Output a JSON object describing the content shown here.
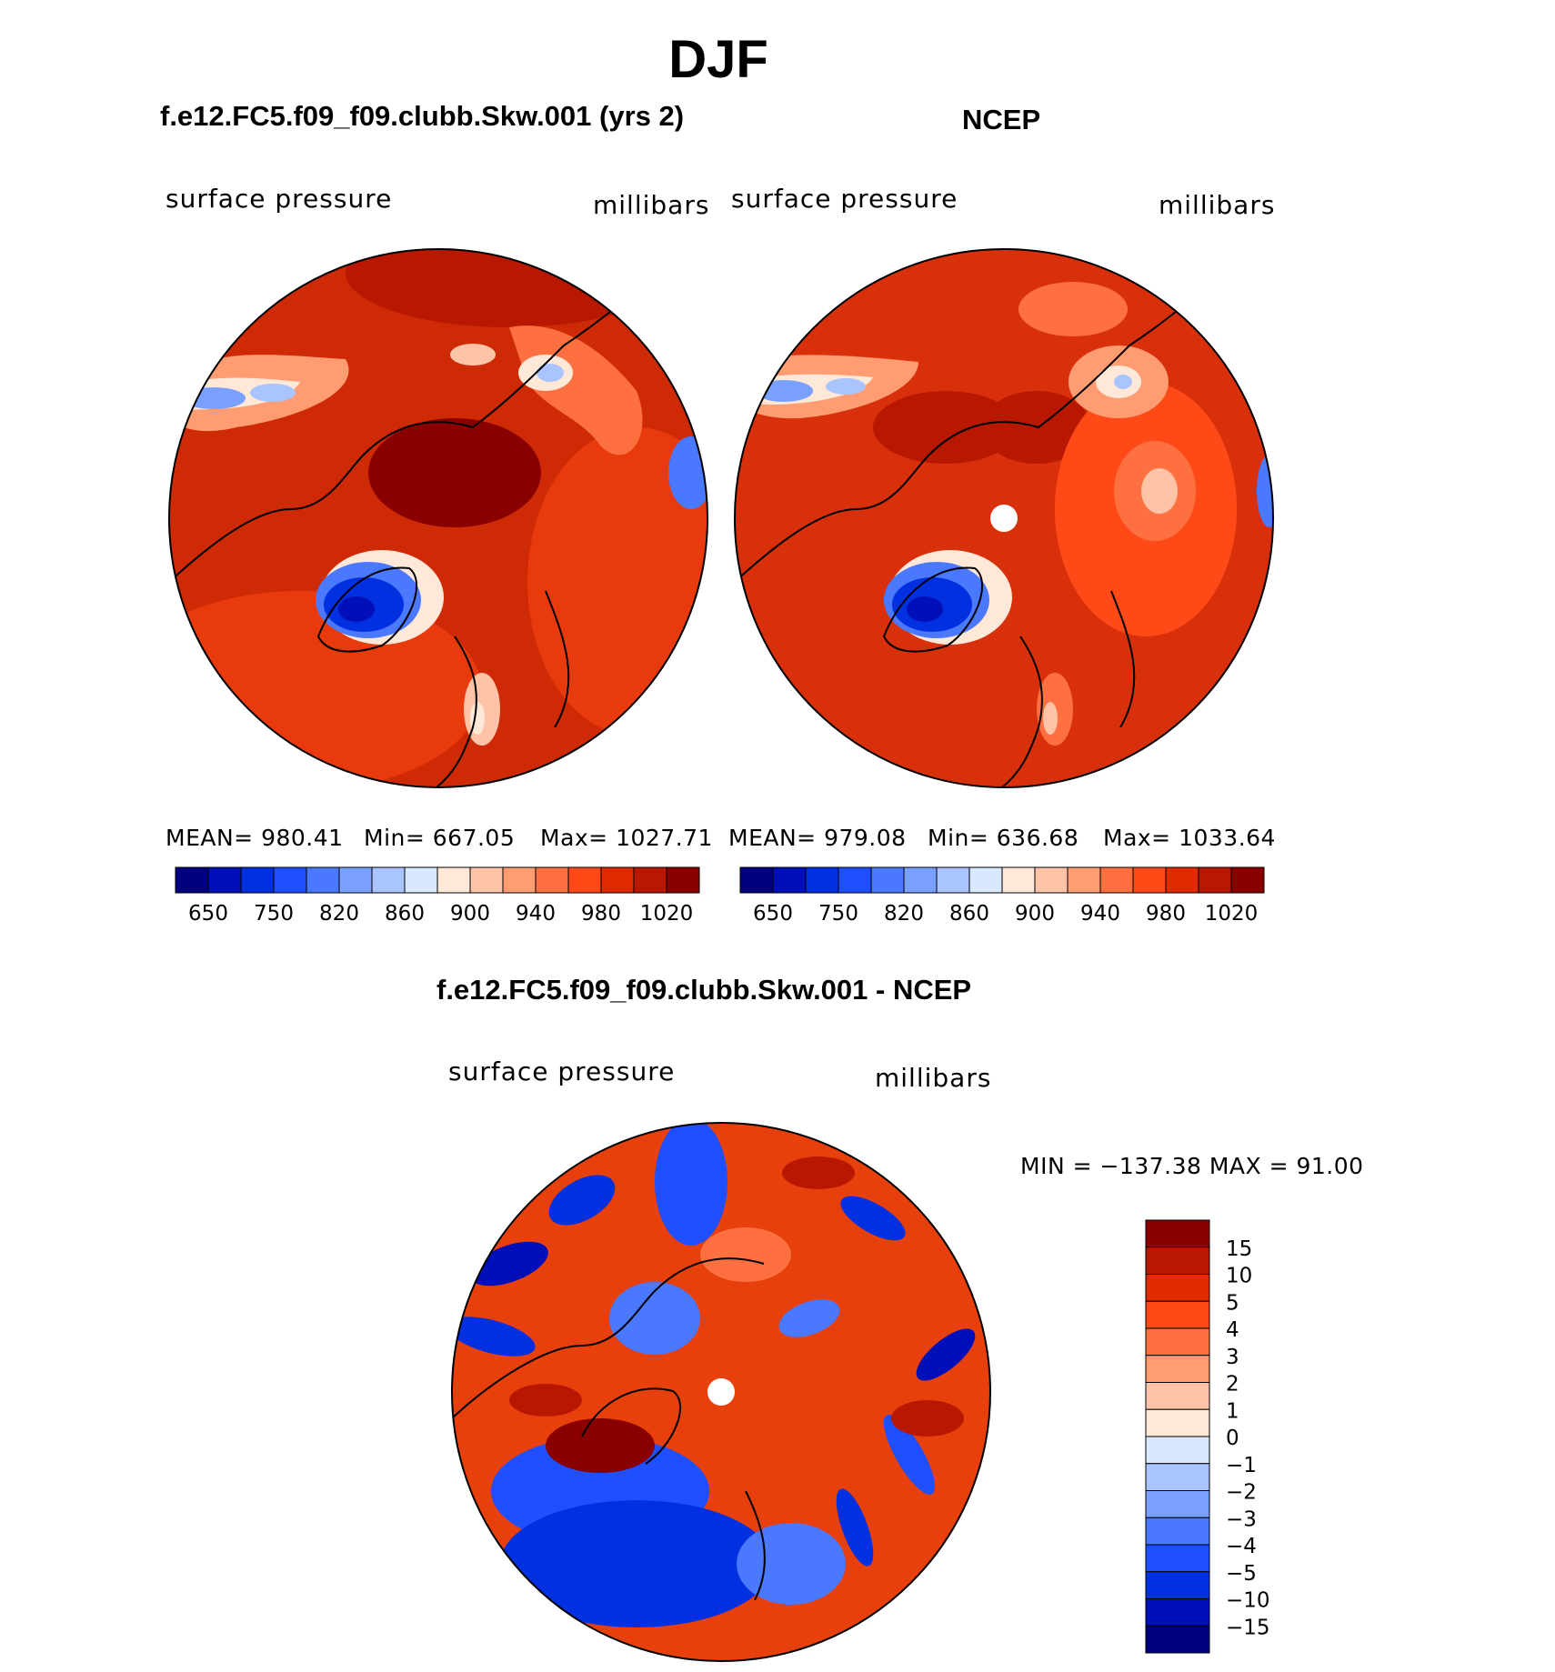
{
  "title": "DJF",
  "panels": {
    "model": {
      "case_title": "f.e12.FC5.f09_f09.clubb.Skw.001 (yrs 2)",
      "field_label": "surface pressure",
      "units_label": "millibars",
      "stats": {
        "mean": "MEAN= 980.41",
        "min": "Min= 667.05",
        "max": "Max= 1027.71"
      }
    },
    "obs": {
      "case_title": "NCEP",
      "field_label": "surface pressure",
      "units_label": "millibars",
      "stats": {
        "mean": "MEAN= 979.08",
        "min": "Min= 636.68",
        "max": "Max= 1033.64"
      }
    },
    "diff": {
      "case_title": "f.e12.FC5.f09_f09.clubb.Skw.001 - NCEP",
      "field_label": "surface pressure",
      "units_label": "millibars",
      "minmax": "MIN = −137.38 MAX =   91.00"
    }
  },
  "colorbar_top": {
    "colors": [
      "#00007f",
      "#0010b8",
      "#0030e0",
      "#1f4fff",
      "#4a78ff",
      "#7aa0ff",
      "#a9c4ff",
      "#d8e8ff",
      "#ffe8d8",
      "#ffc4a8",
      "#ff9c72",
      "#ff7040",
      "#ff4a18",
      "#e02a00",
      "#b81800",
      "#8a0000"
    ],
    "tick_labels": [
      "650",
      "750",
      "820",
      "860",
      "900",
      "940",
      "980",
      "1020"
    ]
  },
  "colorbar_diff": {
    "colors_top_to_bottom": [
      "#8a0000",
      "#b81800",
      "#e02a00",
      "#ff4a18",
      "#ff7040",
      "#ff9c72",
      "#ffc4a8",
      "#ffe8d8",
      "#d8e8ff",
      "#a9c4ff",
      "#7aa0ff",
      "#4a78ff",
      "#1f4fff",
      "#0030e0",
      "#0010b8",
      "#00007f"
    ],
    "tick_labels": [
      "15",
      "10",
      "5",
      "4",
      "3",
      "2",
      "1",
      "0",
      "−1",
      "−2",
      "−3",
      "−4",
      "−5",
      "−10",
      "−15"
    ]
  }
}
